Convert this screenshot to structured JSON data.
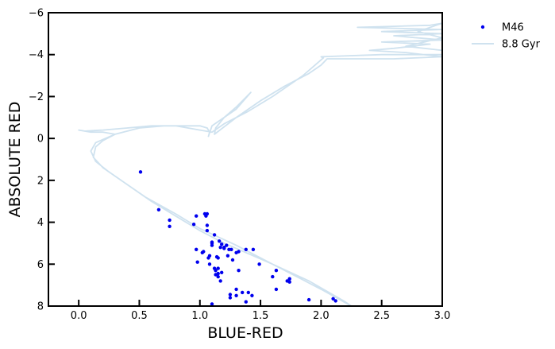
{
  "chart_data": {
    "type": "scatter",
    "xlabel": "BLUE-RED",
    "ylabel": "ABSOLUTE RED",
    "xlim": [
      -0.25,
      3.0
    ],
    "ylim": [
      8,
      -6
    ],
    "y_inverted": true,
    "grid": false,
    "legend_position": "outside-top-right",
    "x_ticks": [
      "0.0",
      "0.5",
      "1.0",
      "1.5",
      "2.0",
      "2.5",
      "3.0"
    ],
    "y_ticks": [
      "−6",
      "−4",
      "−2",
      "0",
      "2",
      "4",
      "6",
      "8"
    ],
    "colors": {
      "points": "#0000ee",
      "isochrone": "#cfe2ef",
      "axes": "#000000"
    },
    "series": [
      {
        "name": "M46",
        "kind": "scatter",
        "points": [
          [
            0.51,
            1.6
          ],
          [
            0.66,
            3.4
          ],
          [
            0.75,
            3.9
          ],
          [
            0.75,
            4.2
          ],
          [
            0.95,
            4.1
          ],
          [
            0.97,
            3.7
          ],
          [
            0.97,
            5.3
          ],
          [
            0.98,
            5.9
          ],
          [
            1.02,
            5.45
          ],
          [
            1.03,
            5.4
          ],
          [
            1.04,
            3.6
          ],
          [
            1.05,
            3.7
          ],
          [
            1.06,
            3.6
          ],
          [
            1.06,
            4.15
          ],
          [
            1.06,
            4.4
          ],
          [
            1.07,
            5.7
          ],
          [
            1.08,
            5.6
          ],
          [
            1.08,
            6.0
          ],
          [
            1.1,
            5.0
          ],
          [
            1.1,
            5.1
          ],
          [
            1.1,
            4.95
          ],
          [
            1.12,
            4.6
          ],
          [
            1.12,
            6.2
          ],
          [
            1.13,
            6.3
          ],
          [
            1.13,
            6.5
          ],
          [
            1.14,
            5.65
          ],
          [
            1.15,
            5.7
          ],
          [
            1.15,
            6.45
          ],
          [
            1.16,
            4.9
          ],
          [
            1.17,
            5.2
          ],
          [
            1.17,
            6.8
          ],
          [
            1.18,
            5.05
          ],
          [
            1.18,
            6.4
          ],
          [
            1.2,
            5.2
          ],
          [
            1.2,
            5.25
          ],
          [
            1.22,
            5.1
          ],
          [
            1.23,
            5.6
          ],
          [
            1.24,
            5.3
          ],
          [
            1.26,
            5.3
          ],
          [
            1.27,
            5.8
          ],
          [
            1.3,
            5.45
          ],
          [
            1.32,
            5.4
          ],
          [
            1.32,
            6.3
          ],
          [
            1.35,
            7.35
          ],
          [
            1.25,
            7.45
          ],
          [
            1.25,
            7.6
          ],
          [
            1.3,
            7.5
          ],
          [
            1.3,
            7.2
          ],
          [
            1.38,
            5.3
          ],
          [
            1.4,
            7.35
          ],
          [
            1.43,
            7.5
          ],
          [
            1.44,
            5.3
          ],
          [
            1.49,
            6.0
          ],
          [
            1.15,
            6.2
          ],
          [
            1.15,
            6.6
          ],
          [
            1.1,
            7.9
          ],
          [
            1.38,
            7.8
          ],
          [
            1.6,
            6.6
          ],
          [
            1.63,
            6.3
          ],
          [
            1.63,
            7.2
          ],
          [
            1.72,
            6.8
          ],
          [
            1.74,
            6.7
          ],
          [
            1.74,
            6.85
          ],
          [
            1.9,
            7.7
          ],
          [
            2.1,
            7.65
          ],
          [
            2.12,
            7.75
          ]
        ]
      },
      {
        "name": "8.8 Gyr",
        "kind": "line",
        "points": [
          [
            2.25,
            8.0
          ],
          [
            2.0,
            7.2
          ],
          [
            1.8,
            6.6
          ],
          [
            1.6,
            6.0
          ],
          [
            1.4,
            5.5
          ],
          [
            1.2,
            5.0
          ],
          [
            1.0,
            4.4
          ],
          [
            0.8,
            3.7
          ],
          [
            0.6,
            3.0
          ],
          [
            0.4,
            2.2
          ],
          [
            0.25,
            1.6
          ],
          [
            0.14,
            1.1
          ],
          [
            0.1,
            0.6
          ],
          [
            0.14,
            0.2
          ],
          [
            0.3,
            -0.2
          ],
          [
            0.5,
            -0.5
          ],
          [
            0.7,
            -0.6
          ],
          [
            0.9,
            -0.6
          ],
          [
            1.0,
            -0.6
          ],
          [
            1.06,
            -0.5
          ],
          [
            1.08,
            -0.3
          ],
          [
            1.07,
            -0.1
          ],
          [
            1.1,
            -0.6
          ],
          [
            1.2,
            -1.0
          ],
          [
            1.3,
            -1.5
          ],
          [
            1.42,
            -2.2
          ],
          [
            1.3,
            -1.4
          ],
          [
            1.2,
            -1.0
          ],
          [
            1.13,
            -0.5
          ],
          [
            1.12,
            -0.2
          ],
          [
            1.3,
            -1.0
          ],
          [
            1.5,
            -1.8
          ],
          [
            1.7,
            -2.5
          ],
          [
            1.9,
            -3.1
          ],
          [
            2.0,
            -3.5
          ],
          [
            2.05,
            -3.8
          ],
          [
            2.3,
            -3.8
          ],
          [
            2.6,
            -3.8
          ],
          [
            3.0,
            -3.9
          ],
          [
            2.7,
            -4.1
          ],
          [
            2.4,
            -4.2
          ],
          [
            2.6,
            -4.3
          ],
          [
            2.9,
            -4.5
          ],
          [
            2.5,
            -4.6
          ],
          [
            3.0,
            -4.7
          ],
          [
            2.6,
            -4.9
          ],
          [
            3.0,
            -5.0
          ],
          [
            2.5,
            -5.1
          ],
          [
            3.0,
            -5.2
          ],
          [
            2.3,
            -5.3
          ],
          [
            2.9,
            -5.4
          ],
          [
            3.0,
            -5.5
          ],
          [
            2.8,
            -5.1
          ],
          [
            3.0,
            -4.8
          ],
          [
            2.7,
            -4.4
          ],
          [
            3.0,
            -4.2
          ],
          [
            3.0,
            -4.0
          ],
          [
            2.5,
            -4.0
          ],
          [
            2.0,
            -3.9
          ],
          [
            2.02,
            -3.85
          ],
          [
            1.85,
            -3.0
          ],
          [
            1.6,
            -2.0
          ],
          [
            1.4,
            -1.3
          ],
          [
            1.2,
            -0.7
          ],
          [
            1.1,
            -0.3
          ],
          [
            1.0,
            -0.4
          ],
          [
            0.8,
            -0.6
          ],
          [
            0.6,
            -0.6
          ],
          [
            0.4,
            -0.5
          ],
          [
            0.2,
            -0.4
          ],
          [
            0.05,
            -0.35
          ],
          [
            0.0,
            -0.4
          ],
          [
            0.1,
            -0.3
          ],
          [
            0.2,
            -0.3
          ],
          [
            0.3,
            -0.2
          ],
          [
            0.2,
            0.1
          ],
          [
            0.14,
            0.4
          ],
          [
            0.12,
            0.9
          ],
          [
            0.2,
            1.4
          ],
          [
            0.35,
            2.0
          ],
          [
            0.55,
            2.8
          ],
          [
            0.8,
            3.6
          ],
          [
            1.0,
            4.3
          ],
          [
            1.3,
            5.1
          ],
          [
            1.6,
            6.0
          ],
          [
            1.9,
            6.8
          ],
          [
            2.2,
            7.8
          ],
          [
            2.25,
            8.0
          ]
        ]
      }
    ]
  }
}
